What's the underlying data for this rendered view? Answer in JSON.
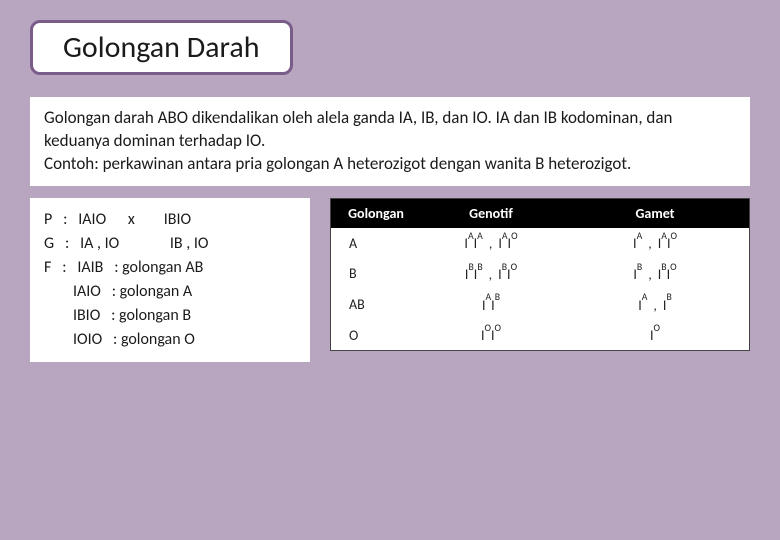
{
  "title": "Golongan Darah",
  "paragraph": "Golongan darah ABO dikendalikan oleh alela ganda IA, IB, dan IO. IA dan IB kodominan, dan keduanya dominan terhadap IO.\nContoh: perkawinan antara pria golongan A heterozigot dengan wanita B heterozigot.",
  "cross": "P   :   IAIO      x        IBIO\nG   :   IA , IO              IB , IO\nF   :   IAIB   : golongan AB\n        IAIO   : golongan A\n        IBIO   : golongan B\n        IOIO   : golongan O",
  "table": {
    "headers": [
      "Golongan",
      "Genotif",
      "Gamet"
    ],
    "rows": [
      {
        "gol": "A",
        "gen": [
          "IAIA",
          "IAIO"
        ],
        "gam": [
          "IA",
          "IAIO"
        ]
      },
      {
        "gol": "B",
        "gen": [
          "IBIB",
          "IBIO"
        ],
        "gam": [
          "IB",
          "IBIO"
        ]
      },
      {
        "gol": "AB",
        "gen": [
          "IAIB"
        ],
        "gam": [
          "IA",
          "IB"
        ]
      },
      {
        "gol": "O",
        "gen": [
          "IOIO"
        ],
        "gam": [
          "IO"
        ]
      }
    ],
    "header_bg": "#000000",
    "header_fg": "#ffffff",
    "cell_bg": "#ffffff",
    "border_color": "#444444"
  },
  "colors": {
    "page_bg": "#b8a5bf",
    "title_border": "#7a5c8a",
    "panel_bg": "#ffffff",
    "text": "#1a1a1a"
  }
}
